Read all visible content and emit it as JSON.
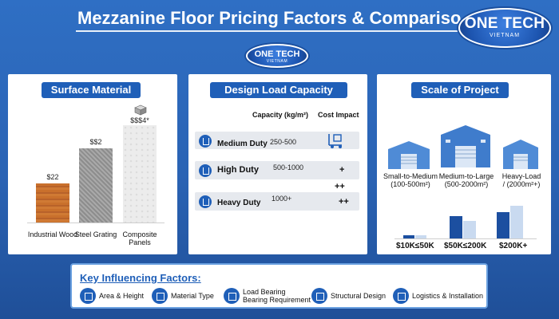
{
  "header": {
    "title": "Mezzanine Floor Pricing Factors & Comparison Ch"
  },
  "logo": {
    "line1": "ONE TECH",
    "line2": "VIETNAM"
  },
  "surface_material": {
    "title": "Surface Material",
    "items": [
      {
        "label": "Industrial Wood",
        "price": "$22",
        "level": 0.4
      },
      {
        "label": "Steel Grating",
        "price": "$$2",
        "level": 0.76
      },
      {
        "label": "Composite Panels",
        "label_line1": "Composite",
        "label_line2": "Panels",
        "price": "$$$4*",
        "level": 1.0
      }
    ]
  },
  "design_load": {
    "title": "Design Load Capacity",
    "col_capacity": "Capacity (kg/m²)",
    "col_impact": "Cost Impact",
    "rows": [
      {
        "name": "Medium Duty",
        "capacity": "250-500",
        "impact": ""
      },
      {
        "name": "High Duty",
        "capacity": "500-1000",
        "impact": "+"
      },
      {
        "name": "Heavy Duty",
        "capacity": "1000+",
        "impact": "++"
      }
    ],
    "extra_impact": "++"
  },
  "scale_of_project": {
    "title": "Scale of Project",
    "projects": [
      {
        "line1": "Small-to-Medium",
        "line2": "(100-500m²)"
      },
      {
        "line1": "Medium-to-Large",
        "line2": "(500-2000m²)"
      },
      {
        "line1": "Heavy-Load",
        "line2": "/ (2000m²+)"
      }
    ],
    "cost_ranges": [
      "$10K≤50K",
      "$50K≤200K",
      "$200K+"
    ],
    "colors": {
      "dark": "#1c4fa0",
      "light": "#c9daf0"
    }
  },
  "key_factors": {
    "title": "Key Influencing Factors:",
    "items": [
      {
        "label": "Area & Height",
        "icon": "area-icon"
      },
      {
        "label": "Material Type",
        "icon": "tools-icon"
      },
      {
        "label_line1": "Load Bearing",
        "label_line2": "Bearing Requirement",
        "icon": "load-icon"
      },
      {
        "label": "Structural Design",
        "icon": "structure-icon"
      },
      {
        "label": "Logistics & Installation",
        "icon": "truck-icon"
      }
    ]
  },
  "colors": {
    "primary": "#1f5fb8",
    "background": "#2a63b4"
  }
}
